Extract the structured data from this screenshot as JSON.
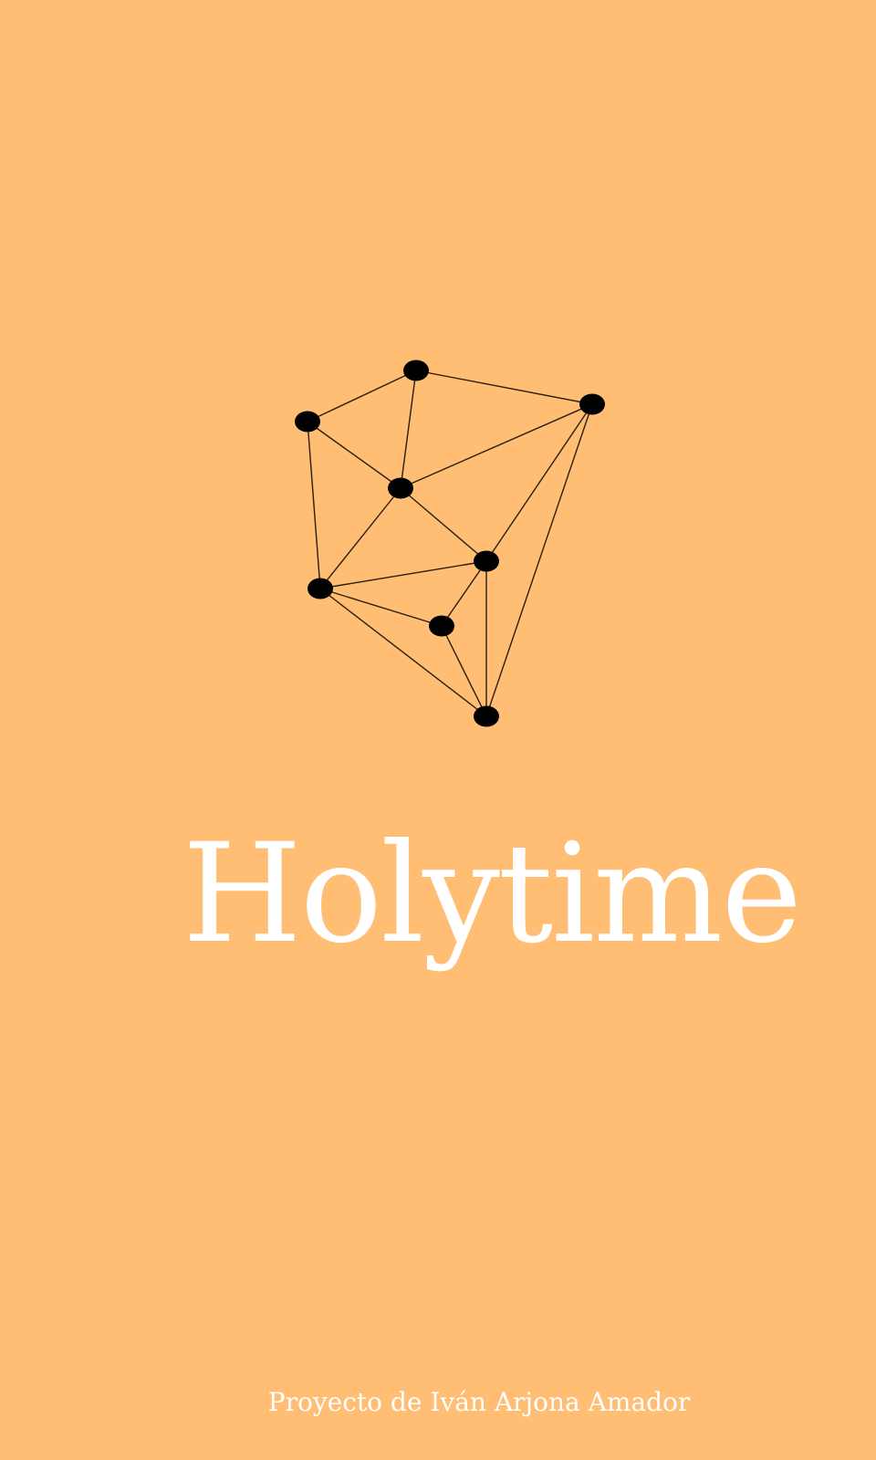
{
  "splash": {
    "background_color": "#ffbe73",
    "logo_icon": "network-graph-icon",
    "title": "Holytime",
    "credit": "Proyecto de Iván Arjona Amador"
  }
}
